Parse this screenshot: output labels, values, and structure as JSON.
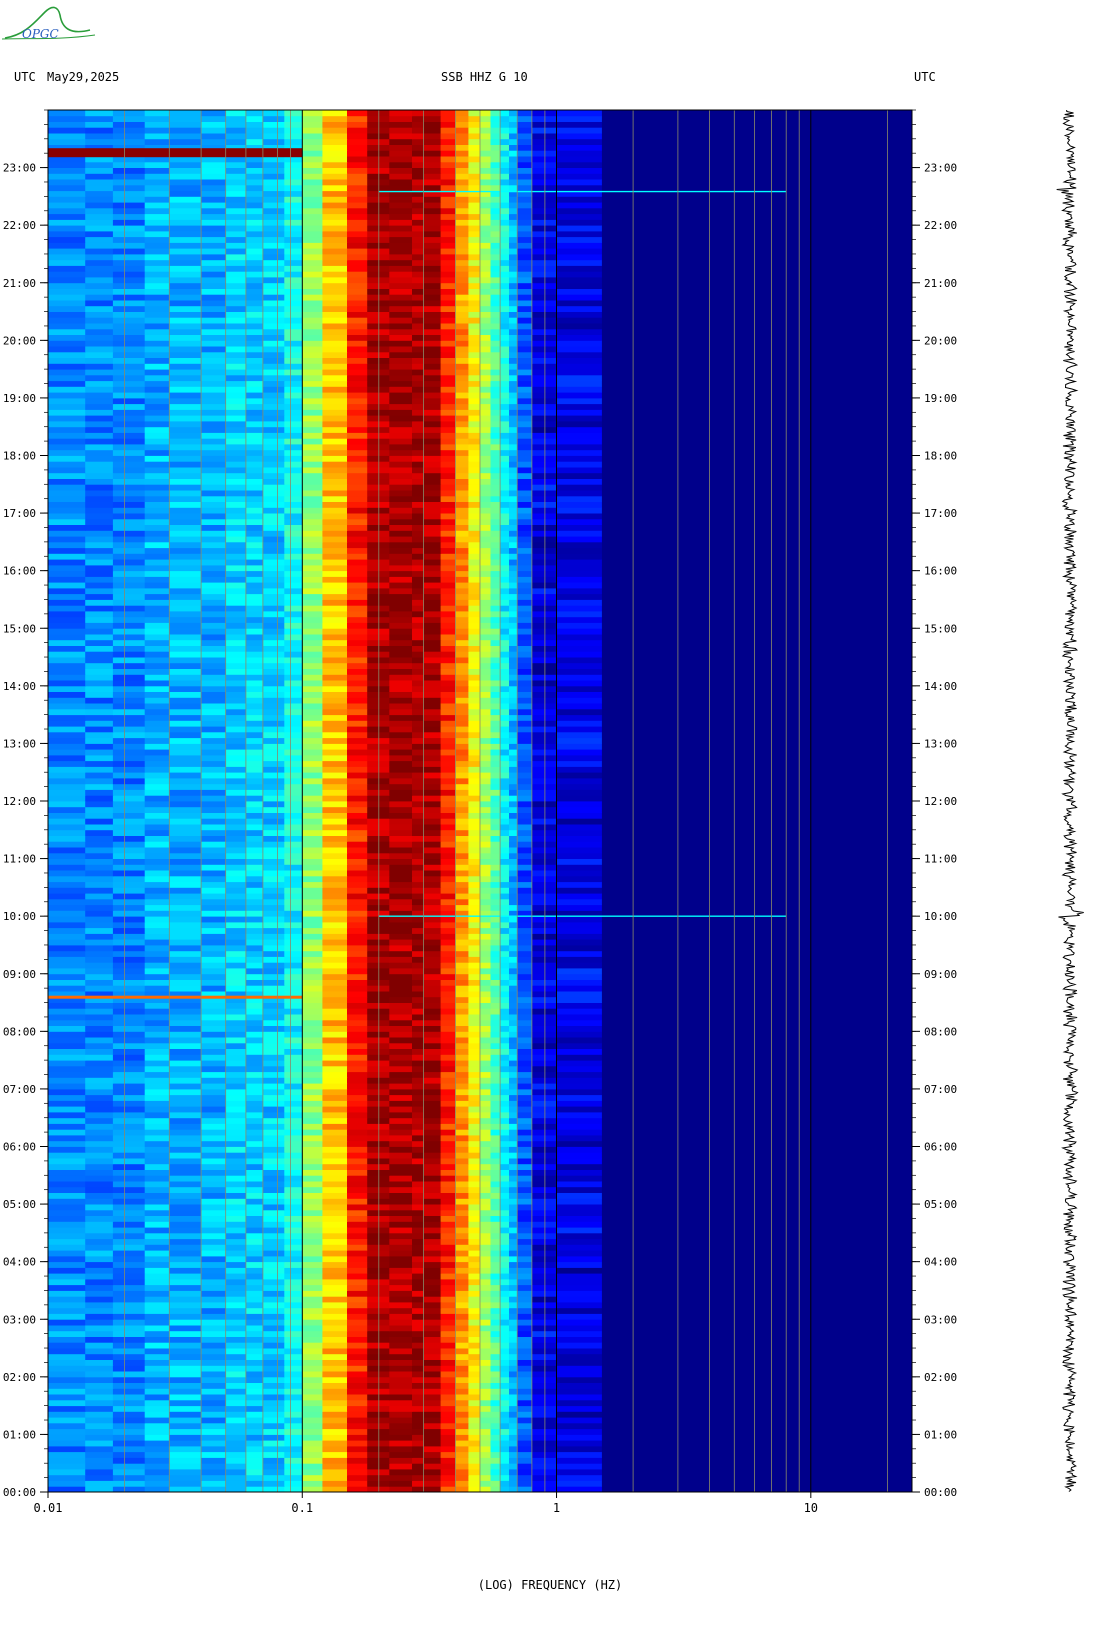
{
  "header": {
    "left_tz": "UTC",
    "date": "May29,2025",
    "station": "SSB HHZ G 10",
    "right_tz": "UTC"
  },
  "logo": {
    "text": "OPGC"
  },
  "chart_data": {
    "type": "heatmap",
    "title": "SSB HHZ G 10",
    "xlabel": "(LOG) FREQUENCY (HZ)",
    "ylabel": "",
    "x_scale": "log",
    "xlim": [
      0.01,
      25
    ],
    "x_ticks": [
      0.01,
      0.1,
      1,
      10
    ],
    "x_tick_labels": [
      "0.01",
      "0.1",
      "1",
      "10"
    ],
    "y_ticks_hours": [
      0,
      1,
      2,
      3,
      4,
      5,
      6,
      7,
      8,
      9,
      10,
      11,
      12,
      13,
      14,
      15,
      16,
      17,
      18,
      19,
      20,
      21,
      22,
      23
    ],
    "y_tick_labels": [
      "00:00",
      "01:00",
      "02:00",
      "03:00",
      "04:00",
      "05:00",
      "06:00",
      "07:00",
      "08:00",
      "09:00",
      "10:00",
      "11:00",
      "12:00",
      "13:00",
      "14:00",
      "15:00",
      "16:00",
      "17:00",
      "18:00",
      "19:00",
      "20:00",
      "21:00",
      "22:00",
      "23:00"
    ],
    "ylim_hours": [
      0,
      24
    ],
    "grid": true,
    "colormap": "jet",
    "dominant_band_hz": [
      0.15,
      0.35
    ],
    "events": [
      {
        "time": "23:15",
        "type": "low-frequency energy"
      },
      {
        "time": "22:35",
        "type": "broadband line"
      },
      {
        "time": "10:00",
        "type": "broadband line"
      },
      {
        "time": "08:35",
        "type": "low-frequency energy"
      }
    ],
    "colors": {
      "background": "#00008b",
      "low": "#0000ff",
      "mid": "#00ffff",
      "high": "#ffff00",
      "max": "#8b0000"
    }
  }
}
